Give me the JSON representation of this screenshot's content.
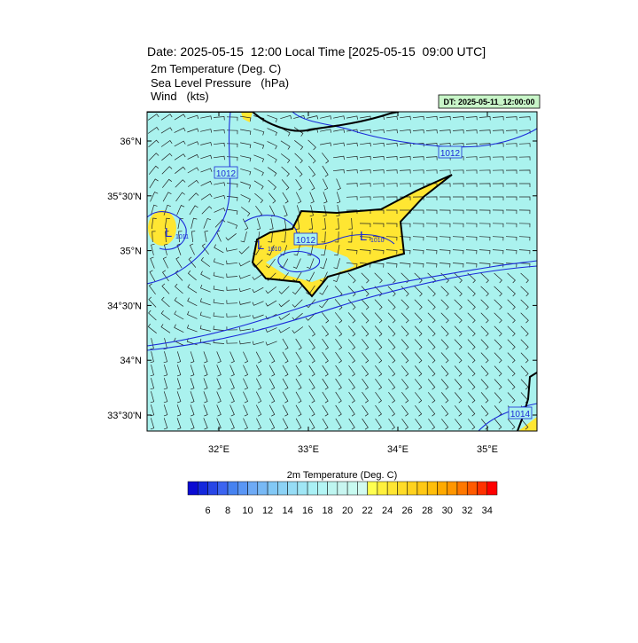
{
  "header": {
    "title": "Date: 2025-05-15  12:00 Local Time [2025-05-15  09:00 UTC]",
    "fields": [
      "2m Temperature (Deg. C)",
      "Sea Level Pressure   (hPa)",
      "Wind   (kts)"
    ],
    "timestamp": "DT: 2025-05-11_12:00:00"
  },
  "map": {
    "lat_ticks": [
      {
        "value": 36,
        "label": "36°N"
      },
      {
        "value": 35.5,
        "label": "35°30'N"
      },
      {
        "value": 35,
        "label": "35°N"
      },
      {
        "value": 34.5,
        "label": "34°30'N"
      },
      {
        "value": 34,
        "label": "34°N"
      },
      {
        "value": 33.5,
        "label": "33°30'N"
      }
    ],
    "lon_ticks": [
      {
        "value": 32,
        "label": "32°E"
      },
      {
        "value": 33,
        "label": "33°E"
      },
      {
        "value": 34,
        "label": "34°E"
      },
      {
        "value": 35,
        "label": "35°E"
      }
    ],
    "contour_labels": [
      "1012",
      "1012",
      "1012",
      "1014"
    ],
    "lows": [
      {
        "symbol": "L",
        "label": "1011"
      },
      {
        "symbol": "L",
        "label": "1010"
      },
      {
        "symbol": "L",
        "label": "1010"
      }
    ]
  },
  "colorbar": {
    "title": "2m Temperature (Deg. C)",
    "labels": [
      6,
      8,
      10,
      12,
      14,
      16,
      18,
      20,
      22,
      24,
      26,
      28,
      30,
      32,
      34
    ],
    "colors": [
      "#0a0ad2",
      "#1428dc",
      "#2846e6",
      "#3c64f0",
      "#4682f0",
      "#5a96f5",
      "#6eaaf5",
      "#78b9f5",
      "#82c8f5",
      "#8cd2f5",
      "#96dcf5",
      "#a0e6f5",
      "#aaf0f5",
      "#b4f5f5",
      "#bef5f0",
      "#c8f5f0",
      "#c8faf0",
      "#d2faf0",
      "#ffff50",
      "#fff03c",
      "#ffe632",
      "#ffdc28",
      "#ffd21e",
      "#ffc814",
      "#ffbe0a",
      "#ffaa00",
      "#ff9600",
      "#ff7800",
      "#ff5a00",
      "#ff3200",
      "#ff0000"
    ]
  }
}
